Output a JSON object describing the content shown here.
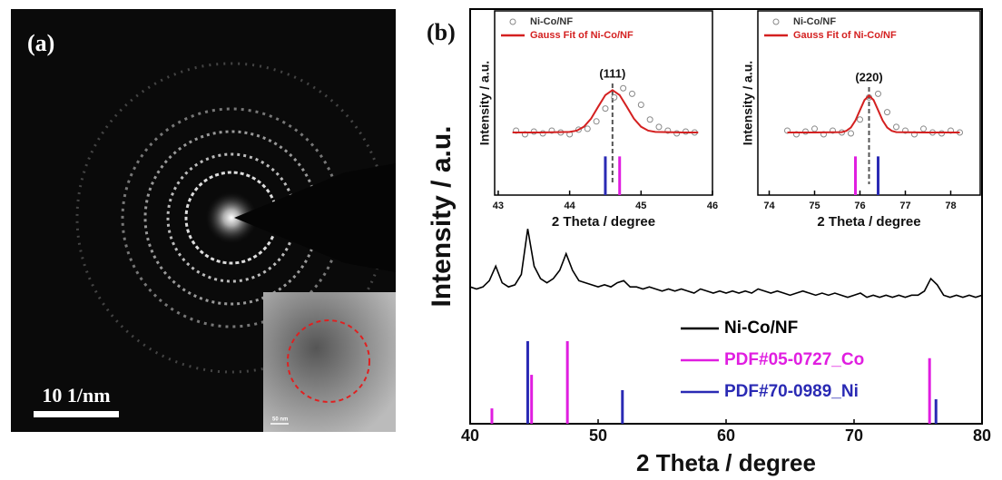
{
  "image_panel": {
    "label": "(a)",
    "scale_bar": "10 1/nm",
    "inset_scale": "50 nm"
  },
  "panel_label": "(b)",
  "chart_data": [
    {
      "type": "line",
      "xlabel": "2 Theta / degree",
      "ylabel": "Intensity / a.u.",
      "xlim": [
        40,
        80
      ],
      "xticks": [
        40,
        50,
        60,
        70,
        80
      ],
      "ylim": [
        0,
        100
      ],
      "series": [
        {
          "name": "Ni-Co/NF",
          "color": "#000000",
          "style": "line",
          "x": [
            40,
            40.5,
            41,
            41.5,
            42,
            42.5,
            43,
            43.5,
            44,
            44.5,
            45,
            45.5,
            46,
            46.5,
            47,
            47.5,
            48,
            48.5,
            49,
            49.5,
            50,
            50.5,
            51,
            51.5,
            52,
            52.5,
            53,
            53.5,
            54,
            54.5,
            55,
            55.5,
            56,
            56.5,
            57,
            57.5,
            58,
            58.5,
            59,
            59.5,
            60,
            60.5,
            61,
            61.5,
            62,
            62.5,
            63,
            63.5,
            64,
            64.5,
            65,
            65.5,
            66,
            66.5,
            67,
            67.5,
            68,
            68.5,
            69,
            69.5,
            70,
            70.5,
            71,
            71.5,
            72,
            72.5,
            73,
            73.5,
            74,
            74.5,
            75,
            75.5,
            76,
            76.5,
            77,
            77.5,
            78,
            78.5,
            79,
            79.5,
            80
          ],
          "values": [
            33,
            32.5,
            33,
            34.5,
            38,
            34,
            33,
            33.5,
            36,
            47,
            38,
            35,
            34,
            35,
            37,
            41,
            37,
            34.5,
            34,
            33.5,
            33,
            33.5,
            33,
            34,
            34.5,
            33,
            33,
            32.5,
            33,
            32.5,
            32,
            32.5,
            32,
            32.5,
            32,
            31.5,
            32.5,
            32,
            31.5,
            32,
            31.5,
            32,
            31.5,
            32,
            31.5,
            32.5,
            32,
            31.5,
            32,
            31.5,
            31,
            31.5,
            32,
            31.5,
            31,
            31.5,
            31,
            31.5,
            31,
            30.5,
            31,
            31.5,
            30.5,
            31,
            30.5,
            31,
            30.5,
            31,
            30.5,
            31,
            31,
            32,
            35,
            33.5,
            31,
            30.5,
            31,
            30.5,
            31,
            30.5,
            31
          ]
        },
        {
          "name": "PDF#05-0727_Co",
          "color": "#e01ee0",
          "style": "stick",
          "x": [
            41.7,
            44.8,
            47.6,
            75.9
          ],
          "values": [
            3.7,
            11.8,
            19.9,
            15.8
          ]
        },
        {
          "name": "PDF#70-0989_Ni",
          "color": "#2a2ab4",
          "style": "stick",
          "x": [
            44.5,
            51.9,
            76.4
          ],
          "values": [
            19.9,
            8.1,
            5.9
          ]
        }
      ]
    },
    {
      "type": "line",
      "xlabel": "2 Theta / degree",
      "ylabel": "Intensity / a.u.",
      "annotation": "(111)",
      "reference_x": 44.6,
      "xlim": [
        42.95,
        46
      ],
      "xticks": [
        43,
        44,
        45,
        46
      ],
      "ylim": [
        0,
        100
      ],
      "series": [
        {
          "name": "Ni-Co/NF",
          "color": "#888888",
          "style": "scatter",
          "x": [
            43.25,
            43.375,
            43.5,
            43.625,
            43.75,
            43.875,
            44,
            44.125,
            44.25,
            44.375,
            44.5,
            44.625,
            44.75,
            44.875,
            45,
            45.125,
            45.25,
            45.375,
            45.5,
            45.625,
            45.75
          ],
          "values": [
            35,
            33,
            34.5,
            33.5,
            35,
            34,
            33,
            35.5,
            36,
            40,
            47,
            53,
            58,
            55,
            49,
            41,
            37,
            35,
            33.5,
            34.5,
            34
          ]
        },
        {
          "name": "Gauss Fit of Ni-Co/NF",
          "color": "#d42020",
          "style": "line",
          "x": [
            43.2,
            43.6,
            44.0,
            44.1,
            44.2,
            44.3,
            44.4,
            44.5,
            44.6,
            44.7,
            44.8,
            44.9,
            45.0,
            45.1,
            45.2,
            45.6,
            45.8
          ],
          "values": [
            34,
            34,
            34.3,
            35,
            37.1,
            41.5,
            48,
            54.3,
            57,
            54.3,
            48,
            41.5,
            37.1,
            35,
            34.3,
            34,
            34
          ]
        },
        {
          "color": "#2a2ab4",
          "style": "stick",
          "x": [
            44.5
          ],
          "values": [
            21
          ]
        },
        {
          "color": "#e01ee0",
          "style": "stick",
          "x": [
            44.7
          ],
          "values": [
            21
          ]
        }
      ]
    },
    {
      "type": "line",
      "xlabel": "2 Theta / degree",
      "ylabel": "Intensity / a.u.",
      "annotation": "(220)",
      "reference_x": 76.2,
      "xlim": [
        73.75,
        78.65
      ],
      "xticks": [
        74,
        75,
        76,
        77,
        78
      ],
      "ylim": [
        0,
        100
      ],
      "series": [
        {
          "name": "Ni-Co/NF",
          "color": "#888888",
          "style": "scatter",
          "x": [
            74.4,
            74.6,
            74.8,
            75,
            75.2,
            75.4,
            75.6,
            75.8,
            76,
            76.2,
            76.4,
            76.6,
            76.8,
            77,
            77.2,
            77.4,
            77.6,
            77.8,
            78,
            78.2
          ],
          "values": [
            35,
            33,
            34.5,
            36,
            33,
            35,
            34,
            33.5,
            41,
            53,
            55,
            45,
            37,
            35,
            33,
            36,
            34,
            33.5,
            35,
            34
          ]
        },
        {
          "name": "Gauss Fit of Ni-Co/NF",
          "color": "#d42020",
          "style": "line",
          "x": [
            74.4,
            75,
            75.6,
            75.7,
            75.8,
            75.9,
            76,
            76.1,
            76.2,
            76.3,
            76.4,
            76.5,
            76.6,
            76.7,
            76.8,
            77.4,
            78.2
          ],
          "values": [
            34,
            34,
            34.2,
            34.9,
            36.7,
            40.5,
            46.1,
            51.6,
            54,
            51.6,
            46.1,
            40.5,
            36.7,
            34.9,
            34.2,
            34,
            34
          ]
        },
        {
          "color": "#e01ee0",
          "style": "stick",
          "x": [
            75.9
          ],
          "values": [
            21
          ]
        },
        {
          "color": "#2a2ab4",
          "style": "stick",
          "x": [
            76.4
          ],
          "values": [
            21
          ]
        }
      ]
    }
  ]
}
